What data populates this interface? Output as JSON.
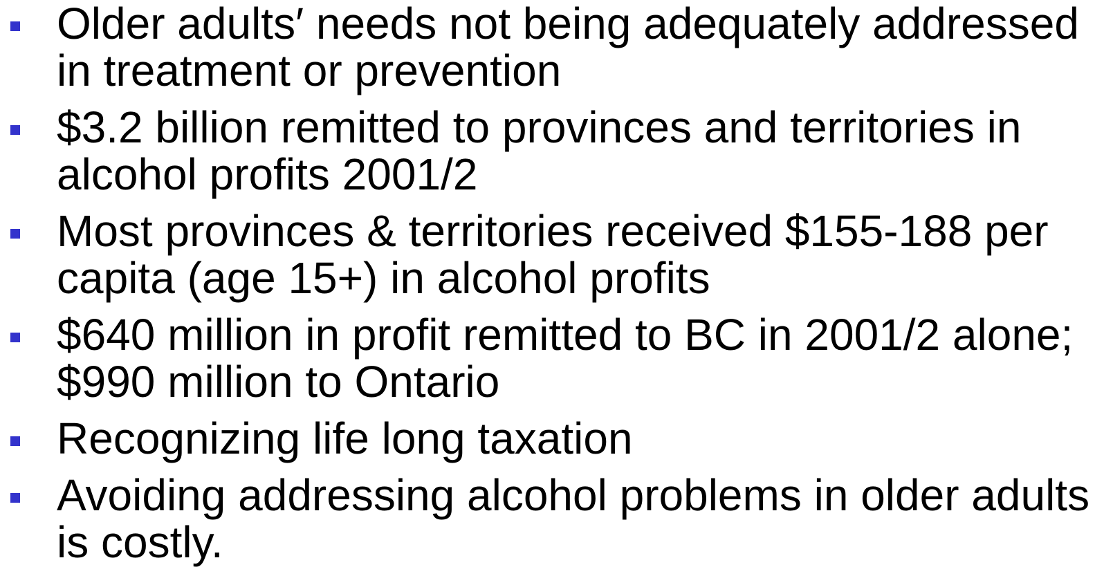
{
  "bullets": [
    [
      "Older adults′ needs not being adequately addressed",
      "in treatment or prevention"
    ],
    [
      "$3.2 billion remitted to provinces and territories in",
      "alcohol profits 2001/2"
    ],
    [
      "Most provinces & territories received $155-188 per",
      "capita (age 15+) in alcohol profits"
    ],
    [
      "$640 million in profit remitted to BC in 2001/2 alone;",
      "$990 million to Ontario"
    ],
    [
      "Recognizing life long taxation"
    ],
    [
      "Avoiding addressing alcohol problems in older adults",
      "is costly."
    ]
  ]
}
